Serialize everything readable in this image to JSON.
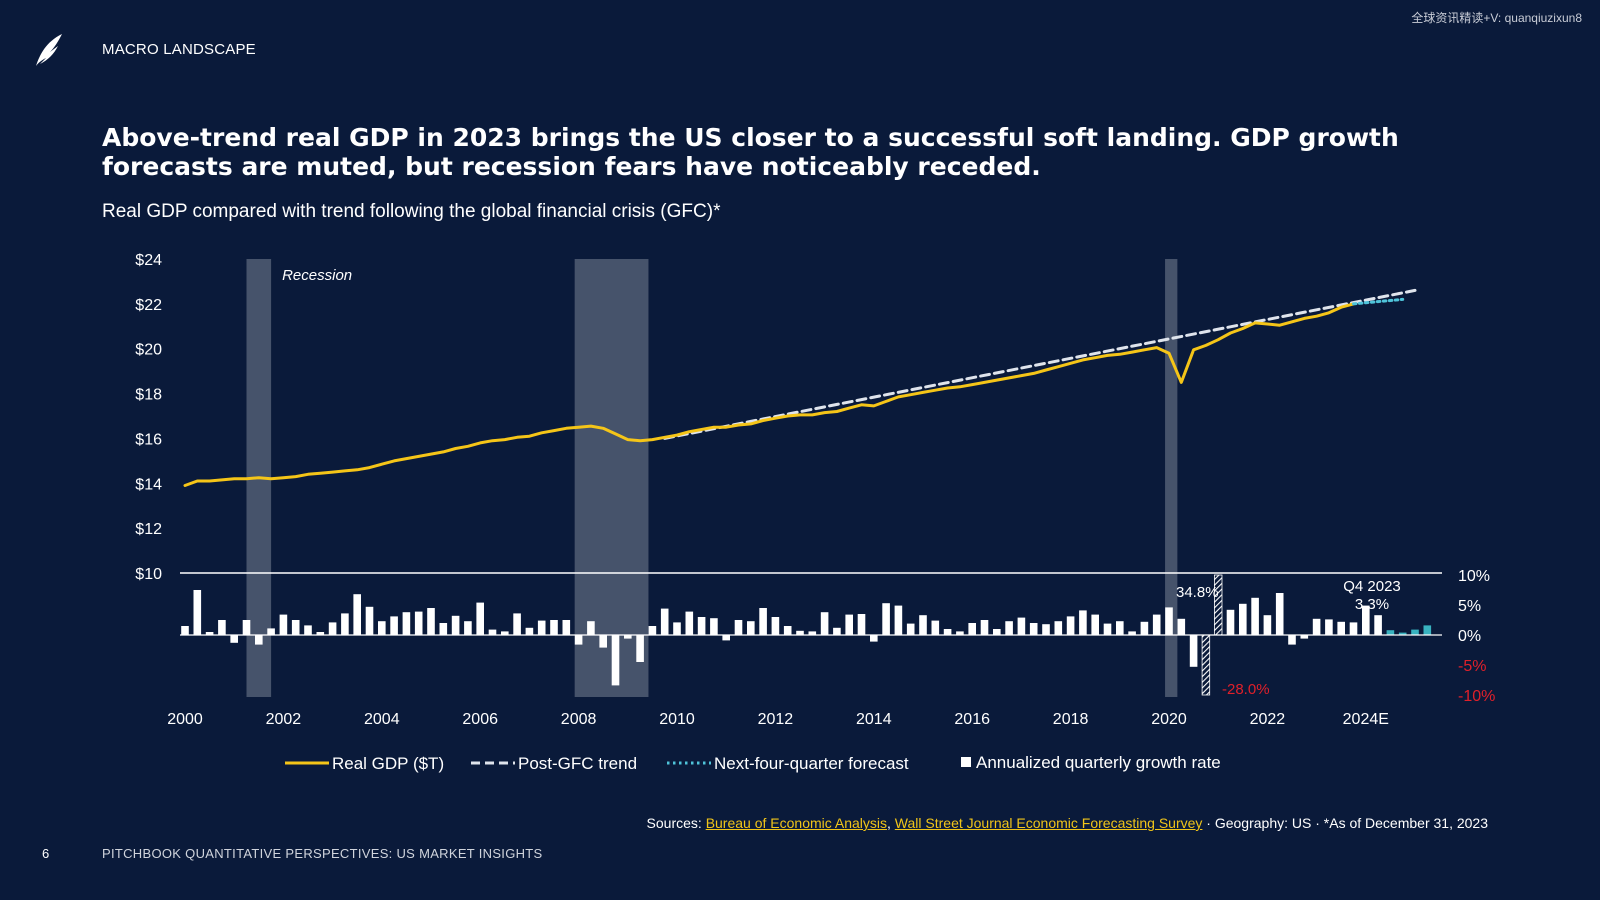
{
  "header": {
    "section_label": "MACRO LANDSCAPE",
    "watermark": "全球资讯精读+V: quanqiuzixun8"
  },
  "headline": "Above-trend real GDP in 2023 brings the US closer to a successful soft landing. GDP growth forecasts are muted, but recession fears have noticeably receded.",
  "subtitle": "Real GDP compared with trend following the global financial crisis (GFC)*",
  "colors": {
    "background": "#0a1a3a",
    "gdp_line": "#f5c518",
    "trend_line": "#dfe4ec",
    "forecast_line": "#4fc3d9",
    "bars": "#ffffff",
    "forecast_bars": "#39b3c0",
    "recession_shade": "#4c5870",
    "negative_label": "#e0202a"
  },
  "chart_data": {
    "type": "line",
    "subtitle": "Real GDP compared with trend following the global financial crisis (GFC)*",
    "x_tick_labels": [
      "2000",
      "2002",
      "2004",
      "2006",
      "2008",
      "2010",
      "2012",
      "2014",
      "2016",
      "2018",
      "2020",
      "2022",
      "2024E"
    ],
    "y_left": {
      "tick_labels": [
        "$24",
        "$22",
        "$20",
        "$18",
        "$16",
        "$14",
        "$12",
        "$10"
      ],
      "tick_values": [
        24,
        22,
        20,
        18,
        16,
        14,
        12,
        10
      ],
      "range": [
        10,
        24
      ]
    },
    "y_right": {
      "tick_labels": [
        "10%",
        "5%",
        "0%",
        "-5%",
        "-10%"
      ],
      "tick_values": [
        10,
        5,
        0,
        -5,
        -10
      ],
      "range": [
        -10,
        10
      ]
    },
    "x_range": [
      2000.0,
      2025.0
    ],
    "recession_label": "Recession",
    "recessions": [
      {
        "start": 2001.25,
        "end": 2001.75
      },
      {
        "start": 2007.92,
        "end": 2009.42
      },
      {
        "start": 2019.92,
        "end": 2020.17
      }
    ],
    "series": [
      {
        "name": "Real GDP ($T)",
        "style": "solid",
        "points": [
          [
            2000.0,
            13.9
          ],
          [
            2000.25,
            14.1
          ],
          [
            2000.5,
            14.1
          ],
          [
            2000.75,
            14.15
          ],
          [
            2001.0,
            14.2
          ],
          [
            2001.25,
            14.2
          ],
          [
            2001.5,
            14.25
          ],
          [
            2001.75,
            14.2
          ],
          [
            2002.0,
            14.25
          ],
          [
            2002.25,
            14.3
          ],
          [
            2002.5,
            14.4
          ],
          [
            2002.75,
            14.45
          ],
          [
            2003.0,
            14.5
          ],
          [
            2003.25,
            14.55
          ],
          [
            2003.5,
            14.6
          ],
          [
            2003.75,
            14.7
          ],
          [
            2004.0,
            14.85
          ],
          [
            2004.25,
            15.0
          ],
          [
            2004.5,
            15.1
          ],
          [
            2004.75,
            15.2
          ],
          [
            2005.0,
            15.3
          ],
          [
            2005.25,
            15.4
          ],
          [
            2005.5,
            15.55
          ],
          [
            2005.75,
            15.65
          ],
          [
            2006.0,
            15.8
          ],
          [
            2006.25,
            15.9
          ],
          [
            2006.5,
            15.95
          ],
          [
            2006.75,
            16.05
          ],
          [
            2007.0,
            16.1
          ],
          [
            2007.25,
            16.25
          ],
          [
            2007.5,
            16.35
          ],
          [
            2007.75,
            16.45
          ],
          [
            2008.0,
            16.5
          ],
          [
            2008.25,
            16.55
          ],
          [
            2008.5,
            16.45
          ],
          [
            2008.75,
            16.2
          ],
          [
            2009.0,
            15.95
          ],
          [
            2009.25,
            15.9
          ],
          [
            2009.5,
            15.95
          ],
          [
            2009.75,
            16.05
          ],
          [
            2010.0,
            16.15
          ],
          [
            2010.25,
            16.3
          ],
          [
            2010.5,
            16.4
          ],
          [
            2010.75,
            16.5
          ],
          [
            2011.0,
            16.5
          ],
          [
            2011.25,
            16.6
          ],
          [
            2011.5,
            16.65
          ],
          [
            2011.75,
            16.8
          ],
          [
            2012.0,
            16.9
          ],
          [
            2012.25,
            17.0
          ],
          [
            2012.5,
            17.05
          ],
          [
            2012.75,
            17.05
          ],
          [
            2013.0,
            17.15
          ],
          [
            2013.25,
            17.2
          ],
          [
            2013.5,
            17.35
          ],
          [
            2013.75,
            17.5
          ],
          [
            2014.0,
            17.45
          ],
          [
            2014.25,
            17.65
          ],
          [
            2014.5,
            17.85
          ],
          [
            2014.75,
            17.95
          ],
          [
            2015.0,
            18.05
          ],
          [
            2015.25,
            18.15
          ],
          [
            2015.5,
            18.25
          ],
          [
            2015.75,
            18.3
          ],
          [
            2016.0,
            18.4
          ],
          [
            2016.25,
            18.5
          ],
          [
            2016.5,
            18.6
          ],
          [
            2016.75,
            18.7
          ],
          [
            2017.0,
            18.8
          ],
          [
            2017.25,
            18.9
          ],
          [
            2017.5,
            19.05
          ],
          [
            2017.75,
            19.2
          ],
          [
            2018.0,
            19.35
          ],
          [
            2018.25,
            19.5
          ],
          [
            2018.5,
            19.6
          ],
          [
            2018.75,
            19.7
          ],
          [
            2019.0,
            19.75
          ],
          [
            2019.25,
            19.85
          ],
          [
            2019.5,
            19.95
          ],
          [
            2019.75,
            20.05
          ],
          [
            2020.0,
            19.8
          ],
          [
            2020.25,
            18.5
          ],
          [
            2020.5,
            19.95
          ],
          [
            2020.75,
            20.15
          ],
          [
            2021.0,
            20.4
          ],
          [
            2021.25,
            20.7
          ],
          [
            2021.5,
            20.9
          ],
          [
            2021.75,
            21.15
          ],
          [
            2022.0,
            21.1
          ],
          [
            2022.25,
            21.05
          ],
          [
            2022.5,
            21.2
          ],
          [
            2022.75,
            21.35
          ],
          [
            2023.0,
            21.45
          ],
          [
            2023.25,
            21.6
          ],
          [
            2023.5,
            21.85
          ],
          [
            2023.75,
            22.0
          ]
        ]
      },
      {
        "name": "Post-GFC trend",
        "style": "dashed",
        "points": [
          [
            2009.75,
            16.0
          ],
          [
            2025.0,
            22.6
          ]
        ]
      },
      {
        "name": "Next-four-quarter forecast",
        "style": "dotted",
        "points": [
          [
            2023.75,
            22.0
          ],
          [
            2024.0,
            22.05
          ],
          [
            2024.25,
            22.1
          ],
          [
            2024.5,
            22.15
          ],
          [
            2024.75,
            22.2
          ]
        ]
      }
    ],
    "growth_bars": {
      "name": "Annualized quarterly growth rate",
      "values": [
        1.5,
        7.5,
        0.5,
        2.5,
        -1.3,
        2.5,
        -1.6,
        1.1,
        3.4,
        2.5,
        1.6,
        0.5,
        2.1,
        3.6,
        6.8,
        4.7,
        2.3,
        3.1,
        3.8,
        3.9,
        4.5,
        2.0,
        3.2,
        2.3,
        5.4,
        0.9,
        0.6,
        3.6,
        1.2,
        2.4,
        2.5,
        2.5,
        -1.6,
        2.3,
        -2.1,
        -8.4,
        -0.6,
        -4.5,
        1.5,
        4.4,
        2.1,
        3.9,
        3.0,
        2.8,
        -0.9,
        2.5,
        2.3,
        4.5,
        3.0,
        1.5,
        0.7,
        0.6,
        3.8,
        1.2,
        3.4,
        3.5,
        -1.1,
        5.3,
        4.9,
        1.9,
        3.3,
        2.4,
        1.0,
        0.6,
        2.0,
        2.5,
        1.0,
        2.3,
        2.9,
        2.0,
        1.8,
        2.3,
        3.1,
        4.1,
        3.4,
        1.9,
        2.3,
        0.6,
        2.2,
        3.4,
        4.6,
        2.7,
        -5.3,
        -28.0,
        34.8,
        4.2,
        5.2,
        6.2,
        3.3,
        7.0,
        -1.6,
        -0.6,
        2.7,
        2.6,
        2.2,
        2.1,
        4.9,
        3.3
      ],
      "forecast_values": [
        0.8,
        0.4,
        0.9,
        1.6
      ],
      "annotations": [
        {
          "label": "34.8%",
          "color": "#ffffff"
        },
        {
          "label": "-28.0%",
          "color": "#e0202a"
        },
        {
          "label": "Q4 2023",
          "color": "#ffffff"
        },
        {
          "label": "3.3%",
          "color": "#ffffff"
        }
      ]
    },
    "legend": {
      "placement": "bottom",
      "entries": [
        {
          "label": "Real GDP ($T)",
          "style": "solid"
        },
        {
          "label": "Post-GFC trend",
          "style": "dashed"
        },
        {
          "label": "Next-four-quarter forecast",
          "style": "dotted"
        },
        {
          "label": "Annualized quarterly growth rate",
          "style": "square"
        }
      ]
    }
  },
  "footer": {
    "sources_prefix": "Sources: ",
    "source_link_1": "Bureau of Economic Analysis",
    "source_separator": ", ",
    "source_link_2": "Wall Street Journal Economic Forecasting Survey",
    "sources_suffix": "  ·  Geography: US  ·  *As of December 31, 2023",
    "page_number": "6",
    "report_title": "PITCHBOOK QUANTITATIVE PERSPECTIVES: US MARKET INSIGHTS"
  }
}
